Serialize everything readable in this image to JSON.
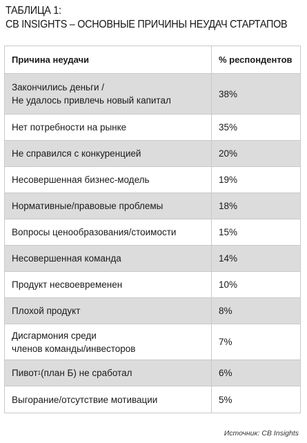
{
  "title": {
    "line1": "ТАБЛИЦА 1:",
    "line2": "CB INSIGHTS – ОСНОВНЫЕ ПРИЧИНЫ НЕУДАЧ СТАРТАПОВ"
  },
  "table": {
    "headers": [
      "Причина неудачи",
      "% респондентов"
    ],
    "rows": [
      {
        "reason": "Закончились деньги /\nНе удалось привлечь новый капитал",
        "percent": "38%"
      },
      {
        "reason": "Нет потребности на рынке",
        "percent": "35%"
      },
      {
        "reason": "Не справился с конкуренцией",
        "percent": "20%"
      },
      {
        "reason": "Несовершенная бизнес-модель",
        "percent": "19%"
      },
      {
        "reason": "Нормативные/правовые проблемы",
        "percent": "18%"
      },
      {
        "reason": "Вопросы ценообразования/стоимости",
        "percent": "15%"
      },
      {
        "reason": "Несовершенная  команда",
        "percent": "14%"
      },
      {
        "reason": "Продукт несвоевременен",
        "percent": "10%"
      },
      {
        "reason": "Плохой продукт",
        "percent": "8%"
      },
      {
        "reason": "Дисгармония среди\nчленов команды/инвесторов",
        "percent": "7%"
      },
      {
        "reason_pre": "Пивот",
        "reason_sup": "1",
        "reason_post": " (план Б) не сработал",
        "percent": "6%"
      },
      {
        "reason": "Выгорание/отсутствие мотивации",
        "percent": "5%"
      }
    ]
  },
  "source": "Источник: CB Insights",
  "colors": {
    "shaded_row": "#dcdcdc",
    "border": "#c9c9c9"
  }
}
